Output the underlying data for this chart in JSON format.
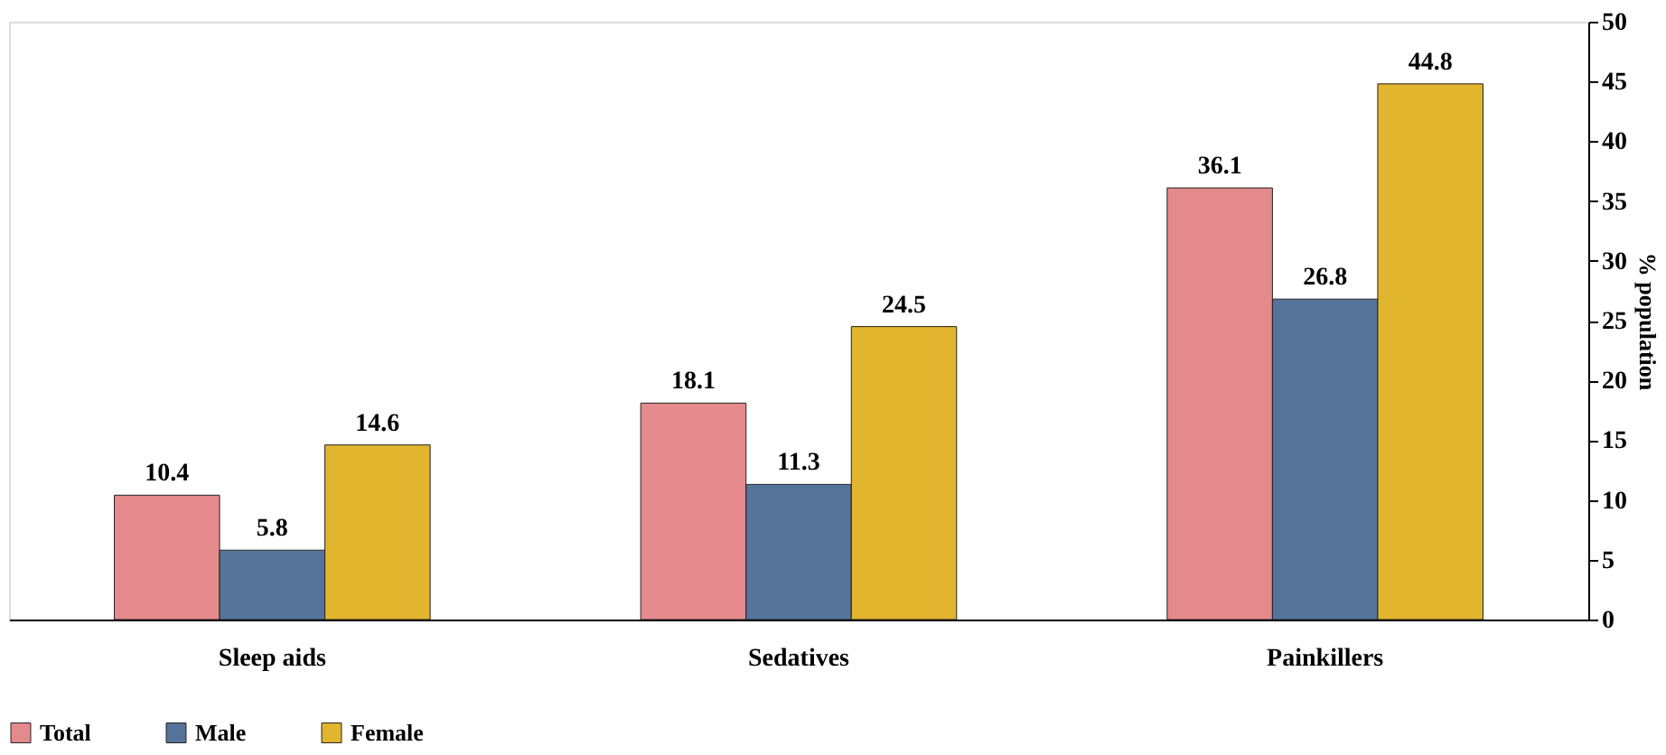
{
  "chart_data": {
    "type": "bar",
    "ylabel": "% population",
    "categories": [
      "Sleep aids",
      "Sedatives",
      "Painkillers"
    ],
    "series": [
      {
        "name": "Total",
        "color": "#e58a8c",
        "values": [
          10.4,
          18.1,
          36.1
        ]
      },
      {
        "name": "Male",
        "color": "#56749a",
        "values": [
          5.8,
          11.3,
          26.8
        ]
      },
      {
        "name": "Female",
        "color": "#e2b52e",
        "values": [
          14.6,
          24.5,
          44.8
        ]
      }
    ],
    "ylim": [
      0,
      50
    ],
    "yticks": [
      0,
      5,
      10,
      15,
      20,
      25,
      30,
      35,
      40,
      45,
      50
    ],
    "grid": false,
    "legend": "bottom",
    "data_labels": true
  }
}
